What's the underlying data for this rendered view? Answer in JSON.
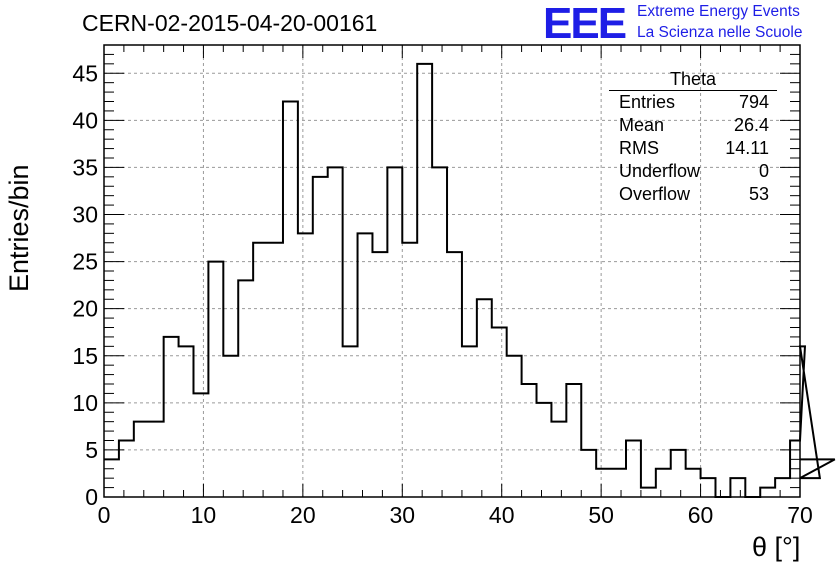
{
  "header": {
    "run_title": "CERN-02-2015-04-20-00161",
    "logo_text": "EEE",
    "logo_line1": "Extreme Energy Events",
    "logo_line2": "La Scienza nelle Scuole"
  },
  "stats_box": {
    "title": "Theta",
    "rows": [
      {
        "label": "Entries",
        "value": "794"
      },
      {
        "label": "Mean",
        "value": "26.4"
      },
      {
        "label": "RMS",
        "value": "14.11"
      },
      {
        "label": "Underflow",
        "value": "0"
      },
      {
        "label": "Overflow",
        "value": "53"
      }
    ]
  },
  "colors": {
    "logo": "#1e1ee6",
    "line": "#000000",
    "grid": "#9a9a9a"
  },
  "chart_data": {
    "type": "bar",
    "histogram": true,
    "xlabel": "θ [°]",
    "ylabel": "Entries/bin",
    "xlim": [
      0,
      70
    ],
    "ylim": [
      0,
      48
    ],
    "grid": true,
    "bin_width": 1.5,
    "x_ticks": [
      0,
      10,
      20,
      30,
      40,
      50,
      60,
      70
    ],
    "y_ticks": [
      0,
      5,
      10,
      15,
      20,
      25,
      30,
      35,
      40,
      45
    ],
    "bin_edges_start": 0,
    "values": [
      4,
      6,
      8,
      8,
      17,
      16,
      11,
      25,
      15,
      23,
      27,
      27,
      42,
      28,
      34,
      35,
      16,
      28,
      26,
      35,
      27,
      46,
      35,
      26,
      16,
      21,
      18,
      15,
      12,
      10,
      8,
      12,
      5,
      3,
      3,
      6,
      1,
      3,
      5,
      3,
      2,
      0,
      2,
      0,
      1,
      2,
      6,
      16,
      2,
      4
    ]
  }
}
